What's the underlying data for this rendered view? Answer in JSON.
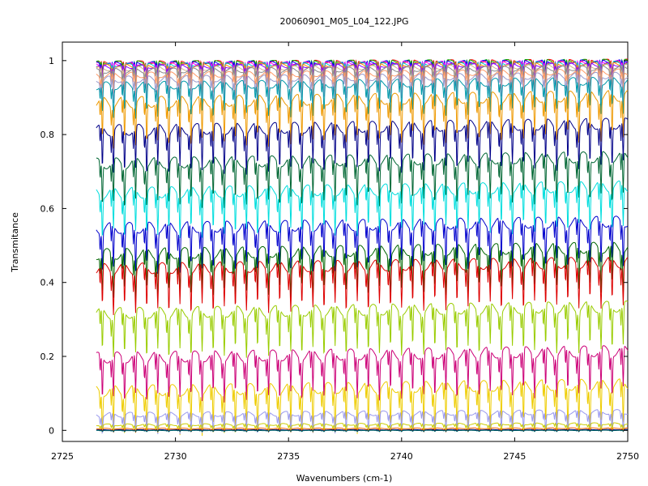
{
  "chart_data": {
    "type": "line",
    "title": "20060901_M05_L04_122.JPG",
    "xlabel": "Wavenumbers (cm-1)",
    "ylabel": "Transmitance",
    "xlim": [
      2725,
      2750
    ],
    "ylim": [
      -0.03,
      1.05
    ],
    "x_ticks": [
      2725,
      2730,
      2735,
      2740,
      2745,
      2750
    ],
    "x_tick_labels": [
      "2725",
      "2730",
      "2735",
      "2740",
      "2745",
      "2750"
    ],
    "y_ticks": [
      0,
      0.2,
      0.4,
      0.6,
      0.8,
      1
    ],
    "y_tick_labels": [
      "0",
      "0.2",
      "0.4",
      "0.6",
      "0.8",
      "1"
    ],
    "x_range": [
      2726.5,
      2750
    ],
    "grid": false,
    "line_pattern": {
      "description": "periodic absorption dips, approx. 0.49 cm-1 spacing",
      "period": 0.49,
      "dip_depth_fraction": 0.12
    },
    "series": [
      {
        "baseline": 1.0,
        "color": "#ff0000"
      },
      {
        "baseline": 1.0,
        "color": "#00aa00"
      },
      {
        "baseline": 0.998,
        "color": "#0000ff"
      },
      {
        "baseline": 0.996,
        "color": "#ff00ff"
      },
      {
        "baseline": 0.994,
        "color": "#00cccc"
      },
      {
        "baseline": 0.992,
        "color": "#ff8800"
      },
      {
        "baseline": 0.99,
        "color": "#8800ff"
      },
      {
        "baseline": 0.985,
        "color": "#d2b48c"
      },
      {
        "baseline": 0.98,
        "color": "#888888"
      },
      {
        "baseline": 0.97,
        "color": "#ff9966"
      },
      {
        "baseline": 0.96,
        "color": "#9999cc"
      },
      {
        "baseline": 0.945,
        "color": "#0099aa"
      },
      {
        "baseline": 0.905,
        "color": "#ee9900"
      },
      {
        "baseline": 0.83,
        "color": "#000088"
      },
      {
        "baseline": 0.74,
        "color": "#006633"
      },
      {
        "baseline": 0.66,
        "color": "#00dddd"
      },
      {
        "baseline": 0.565,
        "color": "#0000cc"
      },
      {
        "baseline": 0.495,
        "color": "#006600"
      },
      {
        "baseline": 0.455,
        "color": "#dd0000"
      },
      {
        "baseline": 0.335,
        "color": "#99cc00"
      },
      {
        "baseline": 0.215,
        "color": "#cc0077"
      },
      {
        "baseline": 0.125,
        "color": "#eecc00"
      },
      {
        "baseline": 0.05,
        "color": "#9999ee"
      },
      {
        "baseline": 0.018,
        "color": "#cccc00"
      },
      {
        "baseline": 0.006,
        "color": "#ff6600"
      },
      {
        "baseline": 0.002,
        "color": "#000066"
      },
      {
        "baseline": 0.0,
        "color": "#006666"
      }
    ]
  }
}
